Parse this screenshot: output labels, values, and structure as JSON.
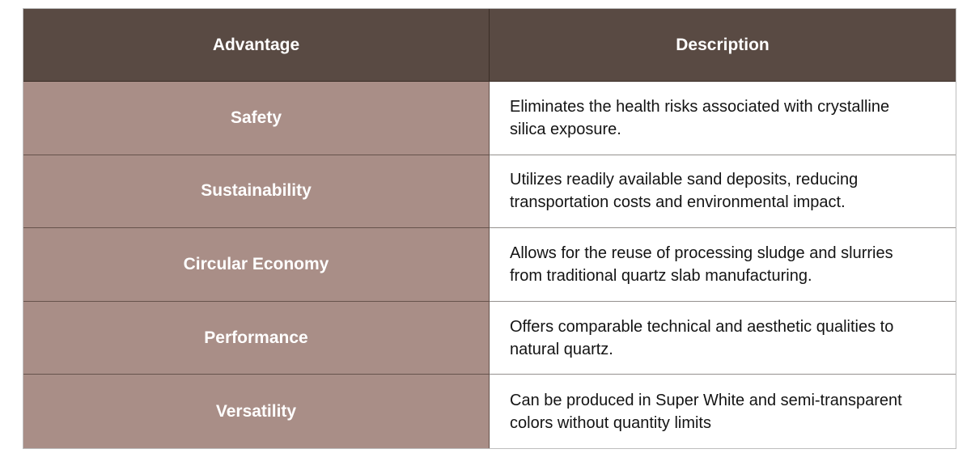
{
  "page": {
    "background": "#ffffff"
  },
  "table": {
    "header": {
      "advantage": "Advantage",
      "description": "Description"
    },
    "rows": [
      {
        "advantage": "Safety",
        "description": "Eliminates the health risks associated with crystalline silica exposure."
      },
      {
        "advantage": "Sustainability",
        "description": "Utilizes readily available sand deposits, reducing transportation costs and environmental impact."
      },
      {
        "advantage": "Circular Economy",
        "description": "Allows for the reuse of processing sludge and slurries from traditional quartz slab manufacturing."
      },
      {
        "advantage": "Performance",
        "description": "Offers comparable technical and aesthetic qualities to natural quartz."
      },
      {
        "advantage": "Versatility",
        "description": "Can be produced in Super White and semi-transparent colors without quantity limits"
      }
    ],
    "colors": {
      "header_bg": "#594a43",
      "header_text": "#ffffff",
      "advantage_bg": "#a98e87",
      "advantage_text": "#ffffff",
      "description_bg": "#ffffff",
      "description_text": "#141414",
      "grid_line_on_white": "#8c8c8c",
      "grid_line_on_mauve": "#4d4340",
      "outer_border": "#bdbdbd"
    }
  },
  "chart_data": {
    "type": "table",
    "columns": [
      "Advantage",
      "Description"
    ],
    "rows": [
      [
        "Safety",
        "Eliminates the health risks associated with crystalline silica exposure."
      ],
      [
        "Sustainability",
        "Utilizes readily available sand deposits, reducing transportation costs and environmental impact."
      ],
      [
        "Circular Economy",
        "Allows for the reuse of processing sludge and slurries from traditional quartz slab manufacturing."
      ],
      [
        "Performance",
        "Offers comparable technical and aesthetic qualities to natural quartz."
      ],
      [
        "Versatility",
        "Can be produced in Super White and semi-transparent colors without quantity limits"
      ]
    ]
  }
}
